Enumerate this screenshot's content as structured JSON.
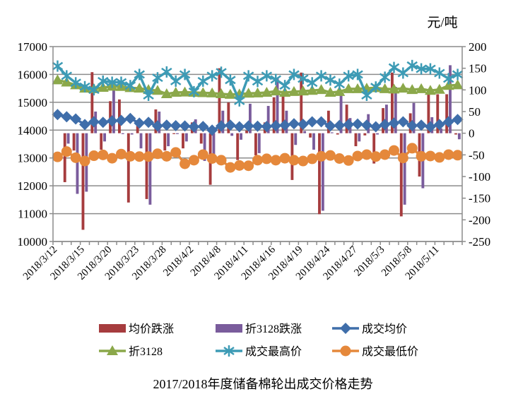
{
  "chart_data": {
    "type": "bar+line",
    "title": "2017/2018年度储备棉轮出成交价格走势",
    "unit_label": "元/吨",
    "left_axis": {
      "range": [
        10000,
        17000
      ],
      "ticks": [
        10000,
        11000,
        12000,
        13000,
        14000,
        15000,
        16000,
        17000
      ]
    },
    "right_axis": {
      "range": [
        -250,
        200
      ],
      "ticks": [
        -250,
        -200,
        -150,
        -100,
        -50,
        0,
        50,
        100,
        150,
        200
      ]
    },
    "grid": true,
    "legend_position": "bottom",
    "x": [
      "2018/3/12",
      "2018/3/13",
      "2018/3/14",
      "2018/3/15",
      "2018/3/16",
      "2018/3/19",
      "2018/3/20",
      "2018/3/21",
      "2018/3/22",
      "2018/3/23",
      "2018/3/26",
      "2018/3/27",
      "2018/3/28",
      "2018/3/29",
      "2018/3/30",
      "2018/4/2",
      "2018/4/3",
      "2018/4/4",
      "2018/4/8",
      "2018/4/9",
      "2018/4/10",
      "2018/4/11",
      "2018/4/12",
      "2018/4/13",
      "2018/4/16",
      "2018/4/17",
      "2018/4/18",
      "2018/4/19",
      "2018/4/20",
      "2018/4/23",
      "2018/4/24",
      "2018/4/25",
      "2018/4/26",
      "2018/4/27",
      "2018/4/28",
      "2018/5/2",
      "2018/5/3",
      "2018/5/4",
      "2018/5/7",
      "2018/5/8",
      "2018/5/9",
      "2018/5/10",
      "2018/5/11",
      "2018/5/14",
      "2018/5/15"
    ],
    "x_tick_labels": [
      "2018/3/12",
      "2018/3/15",
      "2018/3/20",
      "2018/3/23",
      "2018/3/28",
      "2018/4/2",
      "2018/4/8",
      "2018/4/11",
      "2018/4/16",
      "2018/4/19",
      "2018/4/24",
      "2018/4/27",
      "2018/5/3",
      "2018/5/8",
      "2018/5/11"
    ],
    "series": [
      {
        "name": "均价跌涨",
        "type": "bar",
        "axis": "right",
        "color": "#A63C3E",
        "values": [
          0,
          -113,
          -40,
          -223,
          141,
          -38,
          74,
          78,
          -160,
          17,
          -152,
          55,
          -40,
          -2,
          -35,
          25,
          -24,
          -119,
          150,
          71,
          -62,
          6,
          -51,
          25,
          83,
          96,
          -108,
          140,
          -10,
          -187,
          52,
          -3,
          66,
          -30,
          -5,
          -70,
          58,
          140,
          -192,
          46,
          -100,
          90,
          90,
          90,
          -3
        ]
      },
      {
        "name": "折3128跌涨",
        "type": "bar",
        "axis": "right",
        "color": "#7A5C9C",
        "values": [
          0,
          -24,
          -140,
          -135,
          50,
          -19,
          99,
          -2,
          -3,
          -35,
          -165,
          50,
          -30,
          -2,
          -19,
          32,
          -64,
          -48,
          52,
          -6,
          -15,
          68,
          -46,
          63,
          128,
          52,
          -27,
          5,
          -38,
          -179,
          2,
          87,
          35,
          -19,
          44,
          -3,
          66,
          107,
          -165,
          70,
          -127,
          37,
          11,
          157,
          -14
        ]
      },
      {
        "name": "成交均价",
        "type": "line",
        "axis": "left",
        "marker": "diamond",
        "color": "#3F6EAA",
        "values": [
          14560,
          14480,
          14400,
          14200,
          14300,
          14280,
          14330,
          14350,
          14420,
          14250,
          14280,
          14150,
          14180,
          14160,
          14150,
          14120,
          14130,
          14000,
          14150,
          14180,
          14120,
          14150,
          14140,
          14130,
          14160,
          14180,
          14230,
          14210,
          14300,
          14300,
          14150,
          14170,
          14200,
          14220,
          14180,
          14120,
          14200,
          14250,
          14300,
          14160,
          14180,
          14120,
          14200,
          14300,
          14380
        ]
      },
      {
        "name": "折3128",
        "type": "line",
        "axis": "left",
        "marker": "triangle",
        "color": "#8BA84A",
        "values": [
          15800,
          15720,
          15620,
          15500,
          15480,
          15530,
          15570,
          15560,
          15520,
          15500,
          15450,
          15420,
          15300,
          15350,
          15360,
          15350,
          15340,
          15330,
          15300,
          15280,
          15290,
          15320,
          15330,
          15350,
          15400,
          15350,
          15380,
          15400,
          15420,
          15450,
          15350,
          15380,
          15480,
          15480,
          15500,
          15520,
          15480,
          15470,
          15500,
          15450,
          15480,
          15420,
          15460,
          15600,
          15620
        ]
      },
      {
        "name": "成交最高价",
        "type": "line",
        "axis": "left",
        "marker": "star",
        "color": "#3D9BB5",
        "values": [
          16300,
          15950,
          15700,
          15560,
          15450,
          15760,
          15720,
          15720,
          15600,
          16000,
          15250,
          15880,
          16090,
          15760,
          16000,
          15380,
          15760,
          15950,
          16080,
          15800,
          15050,
          15950,
          15750,
          15950,
          15820,
          15600,
          16000,
          15850,
          15700,
          15950,
          15800,
          15650,
          15950,
          16000,
          15250,
          15550,
          15900,
          16250,
          16050,
          16320,
          16200,
          16200,
          16050,
          15850,
          16000
        ]
      },
      {
        "name": "成交最低价",
        "type": "line",
        "axis": "left",
        "marker": "circle",
        "color": "#E5883B",
        "values": [
          13040,
          13230,
          13010,
          12890,
          13080,
          13110,
          12990,
          13140,
          13060,
          13050,
          13050,
          13150,
          13060,
          13200,
          12790,
          12920,
          13120,
          12980,
          12920,
          12660,
          12730,
          12720,
          12920,
          12970,
          12920,
          12990,
          12920,
          12890,
          12970,
          13060,
          13090,
          12980,
          12910,
          13070,
          13120,
          13050,
          13120,
          13270,
          13000,
          13350,
          13060,
          13070,
          13020,
          13120,
          13100
        ]
      }
    ]
  }
}
